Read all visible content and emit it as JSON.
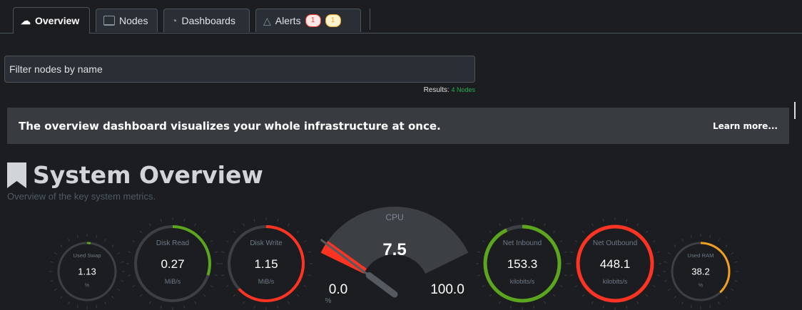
{
  "tabs": [
    {
      "label": "Overview",
      "icon": "overview-icon",
      "active": true
    },
    {
      "label": "Nodes",
      "icon": "nodes-icon"
    },
    {
      "label": "Dashboards",
      "icon": "gauge-icon"
    },
    {
      "label": "Alerts",
      "icon": "bell-icon",
      "badges": [
        {
          "count": "1",
          "color": "#ff3b30",
          "bg": "#fde8e8"
        },
        {
          "count": "1",
          "color": "#f5a623",
          "bg": "#fdf3d0"
        }
      ]
    }
  ],
  "filter": {
    "placeholder": "Filter nodes by name",
    "value": ""
  },
  "results": {
    "label": "Results:",
    "value": "4 Nodes"
  },
  "banner": {
    "text": "The overview dashboard visualizes your whole infrastructure at once.",
    "link": "Learn more..."
  },
  "section": {
    "title": "System Overview",
    "subtitle": "Overview of the key system metrics."
  },
  "gauges": [
    {
      "name": "Used Swap",
      "value": "1.13",
      "unit": "%",
      "fill": 0.02,
      "color": "#5ba61d"
    },
    {
      "name": "Disk Read",
      "value": "0.27",
      "unit": "MiB/s",
      "fill": 0.3,
      "color": "#5ba61d"
    },
    {
      "name": "Disk Write",
      "value": "1.15",
      "unit": "MiB/s",
      "fill": 0.63,
      "color": "#ff3322"
    },
    {
      "name": "Net Inbound",
      "value": "153.3",
      "unit": "kilobits/s",
      "fill": 0.93,
      "color": "#5ba61d"
    },
    {
      "name": "Net Outbound",
      "value": "448.1",
      "unit": "kilobits/s",
      "fill": 1.0,
      "color": "#ff3322"
    },
    {
      "name": "Used RAM",
      "value": "38.2",
      "unit": "%",
      "fill": 0.38,
      "color": "#f0a020"
    }
  ],
  "cpu": {
    "name": "CPU",
    "value": "7.5",
    "min": "0.0",
    "max": "100.0",
    "unit": "%",
    "percent": 7.5,
    "color": "#ff3322"
  }
}
